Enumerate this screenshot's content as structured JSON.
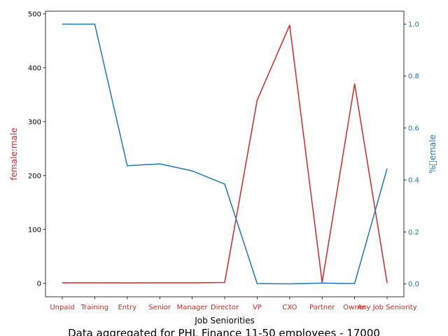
{
  "chart_data": {
    "type": "line",
    "title": "Data aggregated for PHL Finance 11-50 employees - 17000",
    "xlabel": "Job Seniorities",
    "ylabel_left": "female:male",
    "ylabel_right": "%\u0000emale",
    "categories": [
      "Unpaid",
      "Training",
      "Entry",
      "Senior",
      "Manager",
      "Director",
      "VP",
      "CXO",
      "Partner",
      "Owner",
      "Any Job Seniority"
    ],
    "series": [
      {
        "axis": "left",
        "color": "#d62728",
        "values": [
          1,
          1,
          0.8,
          0.9,
          1,
          1.6,
          340,
          479,
          2,
          370,
          0.8
        ]
      },
      {
        "axis": "right",
        "color": "#1f77b4",
        "values": [
          1.0,
          1.0,
          0.455,
          0.462,
          0.435,
          0.384,
          0.001,
          0.0,
          0.003,
          0.001,
          0.444
        ]
      }
    ],
    "ylim_left": [
      -25,
      505
    ],
    "ylim_right": [
      -0.05,
      1.05
    ],
    "yticks_left": [
      "0",
      "100",
      "200",
      "300",
      "400",
      "500"
    ],
    "yticks_right": [
      "0.0",
      "0.2",
      "0.4",
      "0.6",
      "0.8",
      "1.0"
    ],
    "colors": {
      "left_axis": "#d62728",
      "right_axis": "#1f77b4",
      "xticks": "#d62728"
    }
  }
}
